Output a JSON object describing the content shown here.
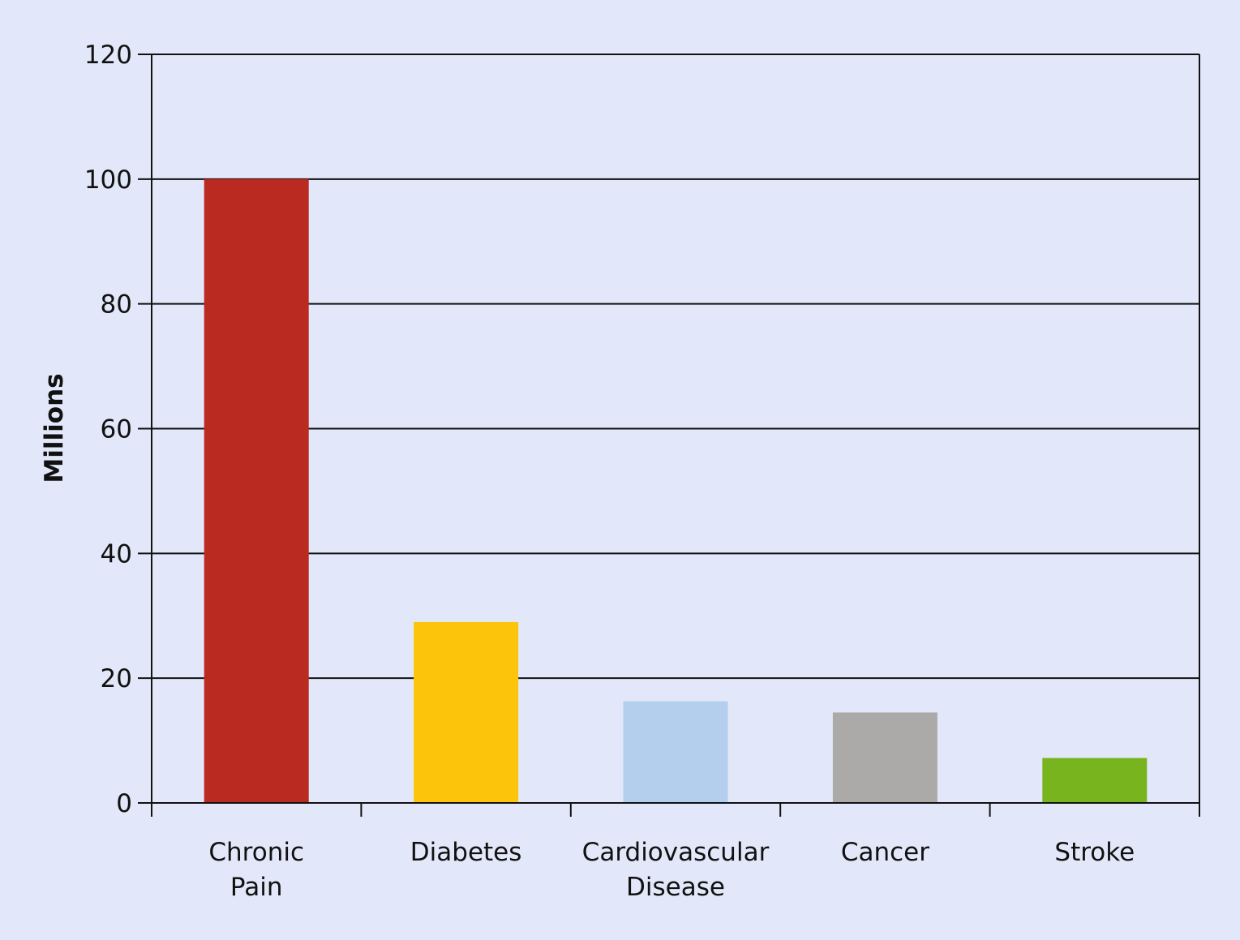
{
  "chart_data": {
    "type": "bar",
    "categories": [
      [
        "Chronic",
        "Pain"
      ],
      [
        "Diabetes"
      ],
      [
        "Cardiovascular",
        "Disease"
      ],
      [
        "Cancer"
      ],
      [
        "Stroke"
      ]
    ],
    "values": [
      100,
      29,
      16.3,
      14.5,
      7.2
    ],
    "colors": [
      "#bb2a20",
      "#fcc40a",
      "#b3cfed",
      "#aca9a9",
      "#78b41e"
    ],
    "title": "",
    "xlabel": "",
    "ylabel": "Millions",
    "ylim": [
      0,
      120
    ],
    "yticks": [
      0,
      20,
      40,
      60,
      80,
      100,
      120
    ],
    "grid": true,
    "background_color": "#e2e8f9"
  }
}
